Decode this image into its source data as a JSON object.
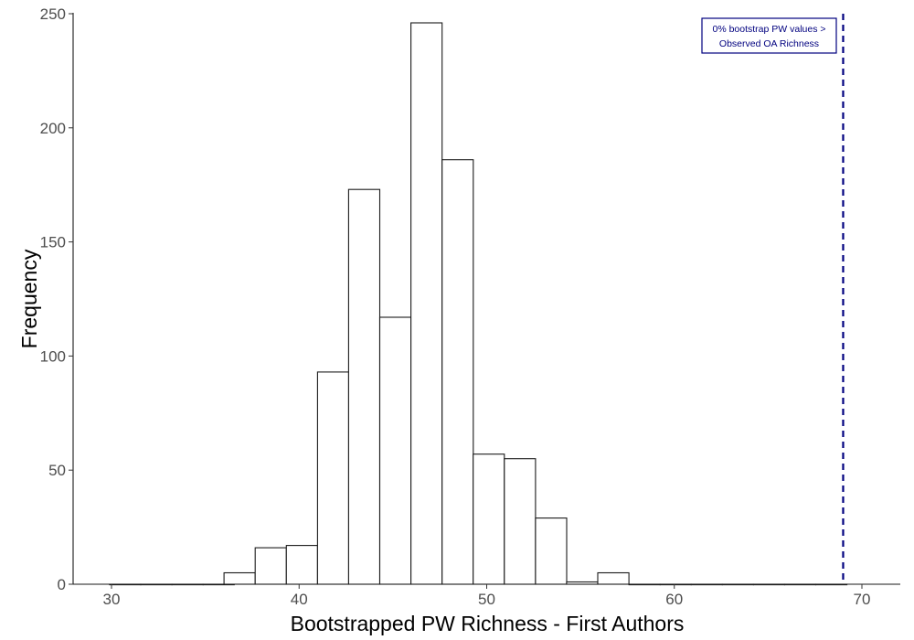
{
  "chart_data": {
    "type": "bar",
    "title": "",
    "xlabel": "Bootstrapped PW Richness - First Authors",
    "ylabel": "Frequency",
    "xlim": [
      28,
      72
    ],
    "ylim": [
      0,
      250
    ],
    "x_ticks": [
      30,
      40,
      50,
      60,
      70
    ],
    "y_ticks": [
      0,
      50,
      100,
      150,
      200,
      250
    ],
    "grid": false,
    "bin_width": 1.66,
    "bins": [
      {
        "x0": 29.9,
        "count": 0
      },
      {
        "x0": 31.56,
        "count": 0
      },
      {
        "x0": 33.22,
        "count": 0
      },
      {
        "x0": 34.88,
        "count": 0
      },
      {
        "x0": 36.0,
        "count": 5
      },
      {
        "x0": 37.66,
        "count": 16
      },
      {
        "x0": 39.32,
        "count": 17
      },
      {
        "x0": 40.98,
        "count": 93
      },
      {
        "x0": 42.64,
        "count": 173
      },
      {
        "x0": 44.3,
        "count": 117
      },
      {
        "x0": 45.96,
        "count": 246
      },
      {
        "x0": 47.62,
        "count": 186
      },
      {
        "x0": 49.28,
        "count": 57
      },
      {
        "x0": 50.94,
        "count": 55
      },
      {
        "x0": 52.6,
        "count": 29
      },
      {
        "x0": 54.26,
        "count": 1
      },
      {
        "x0": 55.92,
        "count": 5
      },
      {
        "x0": 57.58,
        "count": 0
      },
      {
        "x0": 59.24,
        "count": 0
      },
      {
        "x0": 60.9,
        "count": 0
      },
      {
        "x0": 62.56,
        "count": 0
      },
      {
        "x0": 64.22,
        "count": 0
      },
      {
        "x0": 65.88,
        "count": 0
      },
      {
        "x0": 67.54,
        "count": 0
      }
    ],
    "reference_line": {
      "x": 69,
      "style": "dashed",
      "color": "#00007f"
    },
    "annotation": {
      "lines": [
        "0% bootstrap PW values >",
        "Observed OA Richness"
      ],
      "color": "#00007f"
    }
  }
}
